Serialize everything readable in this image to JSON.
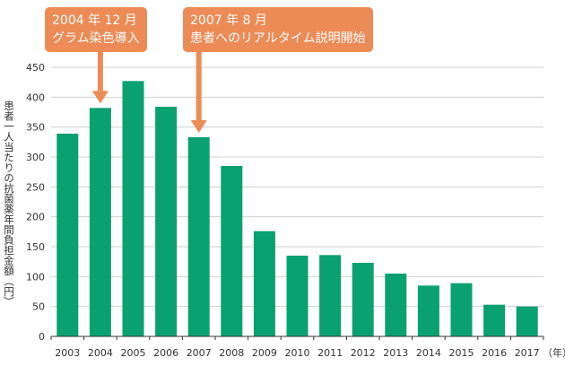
{
  "callouts": [
    {
      "line1": "2004 年 12 月",
      "line2": "グラム染色導入",
      "target_year": "2004"
    },
    {
      "line1": "2007 年 8 月",
      "line2": "患者へのリアルタイム説明開始",
      "target_year": "2007"
    }
  ],
  "colors": {
    "bar": "#0aa170",
    "callout": "#ed8b57",
    "grid": "#d0d0d0",
    "axis": "#333333"
  },
  "chart_data": {
    "type": "bar",
    "categories": [
      "2003",
      "2004",
      "2005",
      "2006",
      "2007",
      "2008",
      "2009",
      "2010",
      "2011",
      "2012",
      "2013",
      "2014",
      "2015",
      "2016",
      "2017"
    ],
    "values": [
      339,
      382,
      427,
      384,
      333,
      285,
      176,
      135,
      136,
      123,
      105,
      85,
      89,
      53,
      50
    ],
    "ylim": [
      0,
      450
    ],
    "yticks": [
      0,
      50,
      100,
      150,
      200,
      250,
      300,
      350,
      400,
      450
    ],
    "ylabel": "患者一人当たりの抗菌薬年間負担金額（円）",
    "xunit": "（年）",
    "grid": true,
    "legend": "none"
  }
}
